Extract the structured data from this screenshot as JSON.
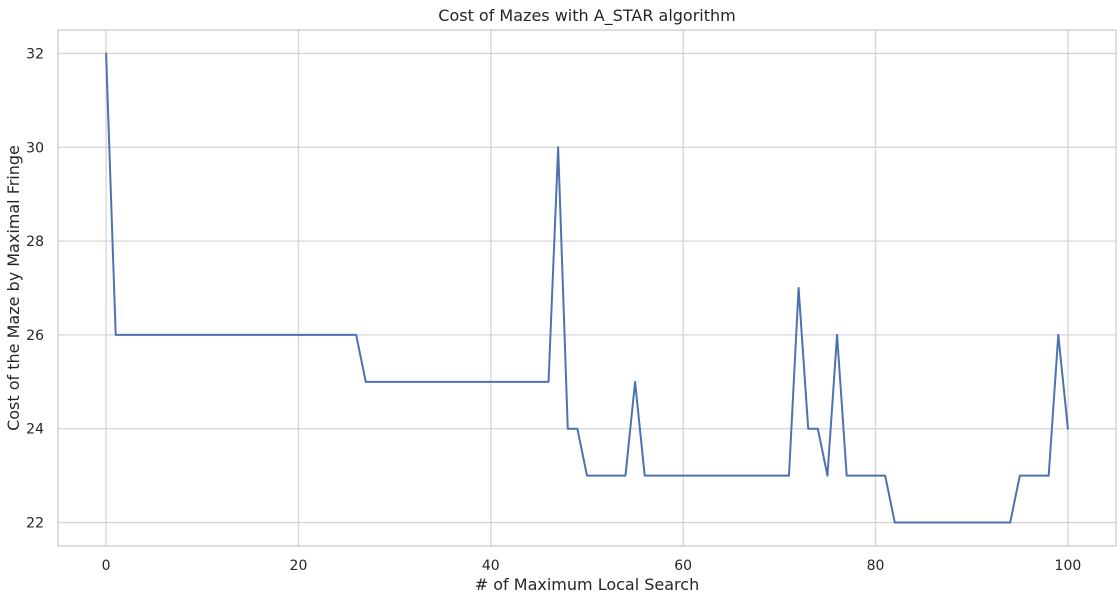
{
  "chart_data": {
    "type": "line",
    "title": "Cost of Mazes with A_STAR algorithm",
    "xlabel": "# of Maximum Local Search",
    "ylabel": "Cost of the Maze by Maximal Fringe",
    "xlim": [
      -5,
      105
    ],
    "ylim": [
      21.5,
      32.5
    ],
    "xticks": [
      0,
      20,
      40,
      60,
      80,
      100
    ],
    "yticks": [
      22,
      24,
      26,
      28,
      30,
      32
    ],
    "grid": true,
    "series": [
      {
        "color": "#4c72b0",
        "points": [
          [
            0,
            32
          ],
          [
            1,
            26
          ],
          [
            26,
            26
          ],
          [
            27,
            25
          ],
          [
            46,
            25
          ],
          [
            47,
            30
          ],
          [
            48,
            24
          ],
          [
            49,
            24
          ],
          [
            50,
            23
          ],
          [
            54,
            23
          ],
          [
            55,
            25
          ],
          [
            56,
            23
          ],
          [
            71,
            23
          ],
          [
            72,
            27
          ],
          [
            73,
            24
          ],
          [
            74,
            24
          ],
          [
            75,
            23
          ],
          [
            76,
            26
          ],
          [
            77,
            23
          ],
          [
            81,
            23
          ],
          [
            82,
            22
          ],
          [
            94,
            22
          ],
          [
            95,
            23
          ],
          [
            98,
            23
          ],
          [
            99,
            26
          ],
          [
            100,
            24
          ]
        ]
      }
    ]
  }
}
